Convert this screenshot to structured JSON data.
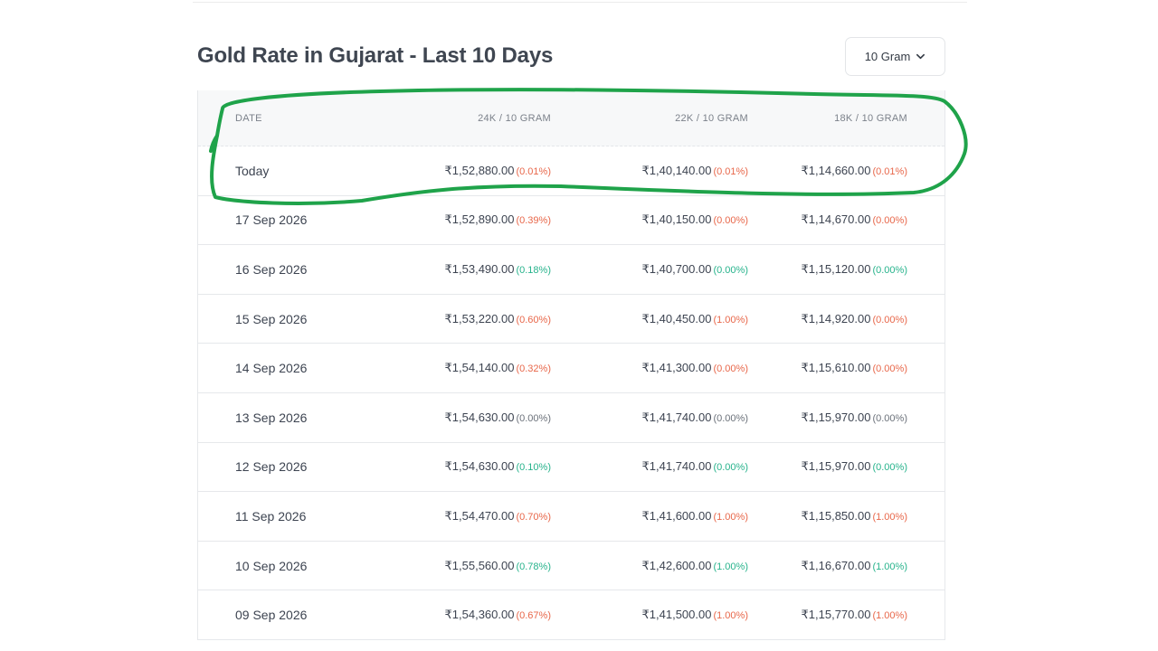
{
  "title": "Gold Rate in Gujarat - Last 10 Days",
  "unit_select": {
    "value": "10 Gram"
  },
  "table": {
    "headers": {
      "date": "DATE",
      "k24": "24K / 10 GRAM",
      "k22": "22K / 10 GRAM",
      "k18": "18K / 10 GRAM"
    },
    "rows": [
      {
        "date": "Today",
        "k24": "₹1,52,880.00",
        "k24c": "(0.01%)",
        "k24t": "up",
        "k22": "₹1,40,140.00",
        "k22c": "(0.01%)",
        "k22t": "up",
        "k18": "₹1,14,660.00",
        "k18c": "(0.01%)",
        "k18t": "up"
      },
      {
        "date": "17 Sep 2026",
        "k24": "₹1,52,890.00",
        "k24c": "(0.39%)",
        "k24t": "up",
        "k22": "₹1,40,150.00",
        "k22c": "(0.00%)",
        "k22t": "up",
        "k18": "₹1,14,670.00",
        "k18c": "(0.00%)",
        "k18t": "up"
      },
      {
        "date": "16 Sep 2026",
        "k24": "₹1,53,490.00",
        "k24c": "(0.18%)",
        "k24t": "down",
        "k22": "₹1,40,700.00",
        "k22c": "(0.00%)",
        "k22t": "down",
        "k18": "₹1,15,120.00",
        "k18c": "(0.00%)",
        "k18t": "down"
      },
      {
        "date": "15 Sep 2026",
        "k24": "₹1,53,220.00",
        "k24c": "(0.60%)",
        "k24t": "up",
        "k22": "₹1,40,450.00",
        "k22c": "(1.00%)",
        "k22t": "up",
        "k18": "₹1,14,920.00",
        "k18c": "(0.00%)",
        "k18t": "up"
      },
      {
        "date": "14 Sep 2026",
        "k24": "₹1,54,140.00",
        "k24c": "(0.32%)",
        "k24t": "up",
        "k22": "₹1,41,300.00",
        "k22c": "(0.00%)",
        "k22t": "up",
        "k18": "₹1,15,610.00",
        "k18c": "(0.00%)",
        "k18t": "up"
      },
      {
        "date": "13 Sep 2026",
        "k24": "₹1,54,630.00",
        "k24c": "(0.00%)",
        "k24t": "flat",
        "k22": "₹1,41,740.00",
        "k22c": "(0.00%)",
        "k22t": "flat",
        "k18": "₹1,15,970.00",
        "k18c": "(0.00%)",
        "k18t": "flat"
      },
      {
        "date": "12 Sep 2026",
        "k24": "₹1,54,630.00",
        "k24c": "(0.10%)",
        "k24t": "down",
        "k22": "₹1,41,740.00",
        "k22c": "(0.00%)",
        "k22t": "down",
        "k18": "₹1,15,970.00",
        "k18c": "(0.00%)",
        "k18t": "down"
      },
      {
        "date": "11 Sep 2026",
        "k24": "₹1,54,470.00",
        "k24c": "(0.70%)",
        "k24t": "up",
        "k22": "₹1,41,600.00",
        "k22c": "(1.00%)",
        "k22t": "up",
        "k18": "₹1,15,850.00",
        "k18c": "(1.00%)",
        "k18t": "up"
      },
      {
        "date": "10 Sep 2026",
        "k24": "₹1,55,560.00",
        "k24c": "(0.78%)",
        "k24t": "down",
        "k22": "₹1,42,600.00",
        "k22c": "(1.00%)",
        "k22t": "down",
        "k18": "₹1,16,670.00",
        "k18c": "(1.00%)",
        "k18t": "down"
      },
      {
        "date": "09 Sep 2026",
        "k24": "₹1,54,360.00",
        "k24c": "(0.67%)",
        "k24t": "up",
        "k22": "₹1,41,500.00",
        "k22c": "(1.00%)",
        "k22t": "up",
        "k18": "₹1,15,770.00",
        "k18c": "(1.00%)",
        "k18t": "up"
      }
    ]
  },
  "colors": {
    "increase": "#e8674a",
    "decrease": "#27b38c",
    "unchanged": "#6b717a",
    "annotation": "#1fa34a"
  },
  "icons": {
    "unit_select": "chevron-down-icon"
  }
}
